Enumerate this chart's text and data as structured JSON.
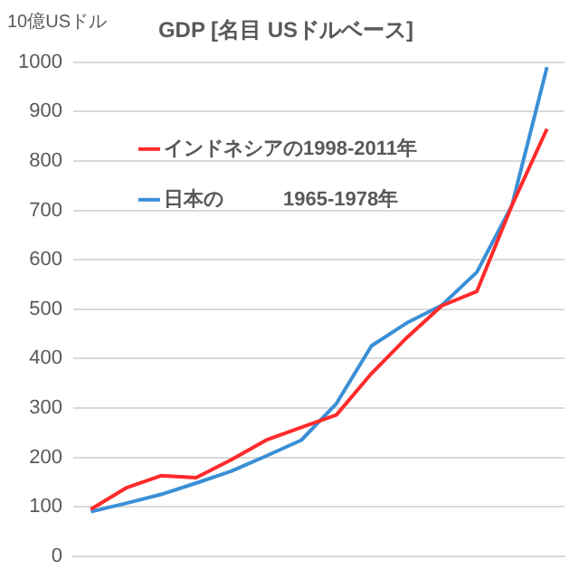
{
  "chart_data": {
    "type": "line",
    "title": "GDP [名目 USドルベース]",
    "ylabel": "10億USドル",
    "categories": [
      null,
      null,
      null,
      null,
      null,
      null,
      null,
      null,
      null,
      null,
      null,
      null,
      null,
      null
    ],
    "series": [
      {
        "name": "インドネシアの1998-2011年",
        "color": "#ff2a2a",
        "values": [
          95,
          138,
          163,
          159,
          195,
          235,
          261,
          286,
          370,
          442,
          507,
          536,
          710,
          865
        ]
      },
      {
        "name": "日本の　　　1965-1978年",
        "color": "#3a8fd6",
        "values": [
          90,
          107,
          125,
          148,
          172,
          203,
          235,
          309,
          426,
          472,
          508,
          575,
          710,
          990
        ]
      }
    ],
    "ylim": [
      0,
      1000
    ],
    "yticks": [
      0,
      100,
      200,
      300,
      400,
      500,
      600,
      700,
      800,
      900,
      1000
    ],
    "grid": "y",
    "legend": "top left",
    "tick_labels": "y",
    "marker": "none",
    "line_style": "solid"
  }
}
